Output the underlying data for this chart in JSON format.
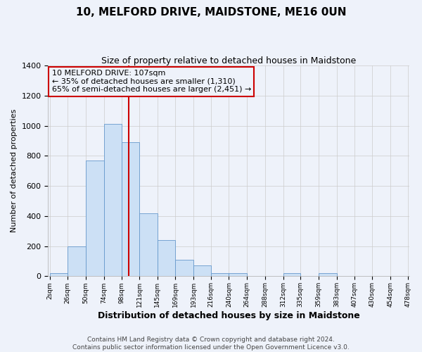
{
  "title": "10, MELFORD DRIVE, MAIDSTONE, ME16 0UN",
  "subtitle": "Size of property relative to detached houses in Maidstone",
  "xlabel": "Distribution of detached houses by size in Maidstone",
  "ylabel": "Number of detached properties",
  "bar_left_edges": [
    2,
    26,
    50,
    74,
    98,
    121,
    145,
    169,
    193,
    216,
    240,
    264,
    288,
    312,
    335,
    359,
    383,
    407,
    430,
    454
  ],
  "bar_widths": [
    24,
    24,
    24,
    24,
    23,
    24,
    24,
    24,
    23,
    24,
    24,
    24,
    24,
    23,
    24,
    24,
    24,
    23,
    24,
    24
  ],
  "bar_heights": [
    20,
    200,
    770,
    1010,
    890,
    420,
    240,
    110,
    70,
    20,
    20,
    0,
    0,
    20,
    0,
    20,
    0,
    0,
    0,
    0
  ],
  "bar_color": "#cce0f5",
  "bar_edge_color": "#6699cc",
  "grid_color": "#cccccc",
  "vline_x": 107,
  "vline_color": "#cc0000",
  "annotation_box_title": "10 MELFORD DRIVE: 107sqm",
  "annotation_line1": "← 35% of detached houses are smaller (1,310)",
  "annotation_line2": "65% of semi-detached houses are larger (2,451) →",
  "annotation_box_color": "#cc0000",
  "ylim": [
    0,
    1400
  ],
  "yticks": [
    0,
    200,
    400,
    600,
    800,
    1000,
    1200,
    1400
  ],
  "xtick_labels": [
    "2sqm",
    "26sqm",
    "50sqm",
    "74sqm",
    "98sqm",
    "121sqm",
    "145sqm",
    "169sqm",
    "193sqm",
    "216sqm",
    "240sqm",
    "264sqm",
    "288sqm",
    "312sqm",
    "335sqm",
    "359sqm",
    "383sqm",
    "407sqm",
    "430sqm",
    "454sqm",
    "478sqm"
  ],
  "footer1": "Contains HM Land Registry data © Crown copyright and database right 2024.",
  "footer2": "Contains public sector information licensed under the Open Government Licence v3.0.",
  "background_color": "#eef2fa",
  "title_fontsize": 11,
  "subtitle_fontsize": 9,
  "annotation_fontsize": 8,
  "ylabel_fontsize": 8,
  "xlabel_fontsize": 9,
  "footer_fontsize": 6.5
}
